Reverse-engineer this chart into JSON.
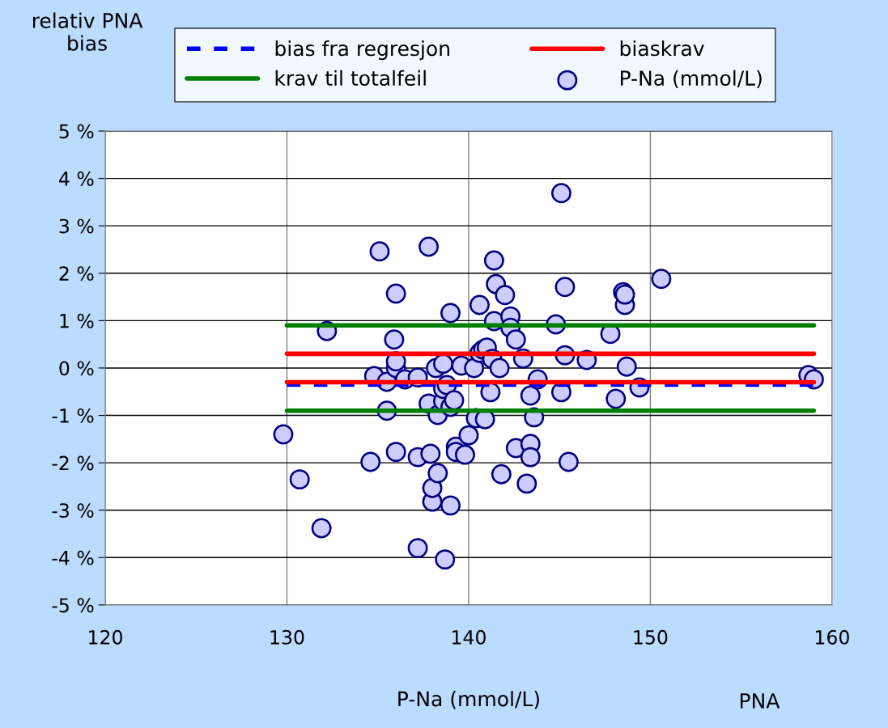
{
  "chart_data": {
    "type": "scatter",
    "xlabel": "P-Na (mmol/L)",
    "ylabel": "relativ PNA\nbias",
    "annotations": [
      "PNA"
    ],
    "xlim": [
      120,
      160
    ],
    "xticks": [
      120,
      130,
      140,
      150,
      160
    ],
    "ylim": [
      -5,
      5
    ],
    "yticks": [
      {
        "value": -5,
        "label": "-5 %"
      },
      {
        "value": -4,
        "label": "-4 %"
      },
      {
        "value": -3,
        "label": "-3 %"
      },
      {
        "value": -2,
        "label": "-2 %"
      },
      {
        "value": -1,
        "label": "-1 %"
      },
      {
        "value": 0,
        "label": "0 %"
      },
      {
        "value": 1,
        "label": "1 %"
      },
      {
        "value": 2,
        "label": "2 %"
      },
      {
        "value": 3,
        "label": "3 %"
      },
      {
        "value": 4,
        "label": "4 %"
      },
      {
        "value": 5,
        "label": "5 %"
      }
    ],
    "grid": true,
    "legend": "top",
    "marker": "circle",
    "series": [
      {
        "name": "bias fra regresjon",
        "type": "line",
        "color": "#0000ff",
        "line_style": "dashed",
        "marker": "none",
        "x": [
          130,
          159
        ],
        "values": [
          -0.35,
          -0.35
        ]
      },
      {
        "name": "krav til totalfeil",
        "type": "line",
        "color": "#008000",
        "line_style": "solid",
        "marker": "none",
        "x": [
          130,
          159
        ],
        "values": [
          0.9,
          0.9
        ]
      },
      {
        "type": "line",
        "color": "#008000",
        "line_style": "solid",
        "marker": "none",
        "x": [
          130,
          159
        ],
        "values": [
          -0.9,
          -0.9
        ]
      },
      {
        "name": "biaskrav",
        "type": "line",
        "color": "#ff0000",
        "line_style": "solid",
        "marker": "none",
        "x": [
          130,
          159
        ],
        "values": [
          0.3,
          0.3
        ]
      },
      {
        "type": "line",
        "color": "#ff0000",
        "line_style": "solid",
        "marker": "none",
        "x": [
          130,
          159
        ],
        "values": [
          -0.3,
          -0.3
        ]
      },
      {
        "name": "P-Na (mmol/L)",
        "color": "#ccccff",
        "x": [
          129.8,
          130.7,
          131.9,
          132.2,
          134.6,
          134.8,
          135.1,
          135.5,
          135.5,
          135.9,
          136.0,
          136.0,
          136.0,
          136.0,
          136.5,
          137.2,
          137.2,
          137.2,
          137.8,
          137.8,
          137.9,
          138.0,
          138.0,
          138.2,
          138.3,
          138.3,
          138.6,
          138.6,
          138.6,
          138.7,
          138.8,
          139.0,
          139.0,
          139.0,
          139.2,
          139.3,
          139.3,
          139.6,
          139.8,
          140.0,
          140.3,
          140.4,
          140.6,
          140.6,
          140.8,
          140.9,
          141.0,
          141.2,
          141.3,
          141.4,
          141.4,
          141.5,
          141.7,
          141.8,
          142.0,
          142.3,
          142.3,
          142.6,
          142.6,
          143.0,
          143.2,
          143.4,
          143.4,
          143.4,
          143.6,
          143.8,
          144.8,
          145.1,
          145.1,
          145.3,
          145.3,
          145.5,
          146.5,
          147.8,
          148.1,
          148.5,
          148.6,
          148.6,
          148.7,
          149.4,
          150.6,
          158.7,
          159.0
        ],
        "values": [
          -1.4,
          -2.35,
          -3.38,
          0.78,
          -1.98,
          -0.17,
          2.46,
          -0.9,
          -0.29,
          0.6,
          1.57,
          0.0,
          0.14,
          -1.77,
          -0.24,
          -0.2,
          -1.88,
          -3.8,
          2.56,
          -0.75,
          -1.81,
          -2.82,
          -2.53,
          0.0,
          -0.99,
          -2.22,
          -0.7,
          0.09,
          -0.44,
          -4.04,
          -0.36,
          1.16,
          -2.9,
          -0.82,
          -0.68,
          -1.66,
          -1.77,
          0.05,
          -1.83,
          -1.42,
          0.0,
          -1.06,
          1.33,
          0.32,
          0.39,
          -1.08,
          0.43,
          -0.51,
          0.19,
          0.99,
          2.27,
          1.77,
          0.0,
          -2.24,
          1.54,
          1.09,
          0.85,
          0.6,
          -1.69,
          0.2,
          -2.44,
          -1.6,
          -1.88,
          -0.58,
          -1.04,
          -0.24,
          0.92,
          3.69,
          -0.51,
          0.27,
          1.71,
          -1.98,
          0.17,
          0.72,
          -0.65,
          1.6,
          1.33,
          1.55,
          0.03,
          -0.41,
          1.88,
          -0.15,
          -0.24
        ]
      }
    ]
  }
}
